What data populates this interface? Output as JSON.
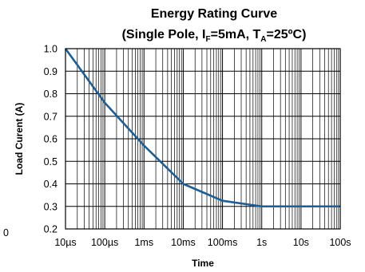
{
  "chart_data": {
    "type": "line",
    "title_line1": "Energy Rating Curve",
    "title_line2_prefix": "(Single Pole, I",
    "title_line2_sub1": "F",
    "title_line2_mid": "=5mA, T",
    "title_line2_sub2": "A",
    "title_line2_suffix": "=25ºC)",
    "xlabel": "Time",
    "ylabel": "Load Curent (A)",
    "x_scale": "log",
    "x_ticks": [
      {
        "value": 1e-05,
        "label": "10µs"
      },
      {
        "value": 0.0001,
        "label": "100µs"
      },
      {
        "value": 0.001,
        "label": "1ms"
      },
      {
        "value": 0.01,
        "label": "10ms"
      },
      {
        "value": 0.1,
        "label": "100ms"
      },
      {
        "value": 1,
        "label": "1s"
      },
      {
        "value": 10,
        "label": "10s"
      },
      {
        "value": 100,
        "label": "100s"
      }
    ],
    "xlim": [
      1e-05,
      100
    ],
    "y_ticks": [
      "0.2",
      "0.3",
      "0.4",
      "0.5",
      "0.6",
      "0.7",
      "0.8",
      "0.9",
      "1.0"
    ],
    "ylim": [
      0.2,
      1.0
    ],
    "stray_label": "0",
    "grid": true,
    "series": [
      {
        "color": "#1a5e9a",
        "x": [
          1e-05,
          0.0001,
          0.001,
          0.01,
          0.1,
          1,
          100
        ],
        "y": [
          1.0,
          0.76,
          0.57,
          0.4,
          0.325,
          0.3,
          0.3
        ]
      }
    ]
  }
}
